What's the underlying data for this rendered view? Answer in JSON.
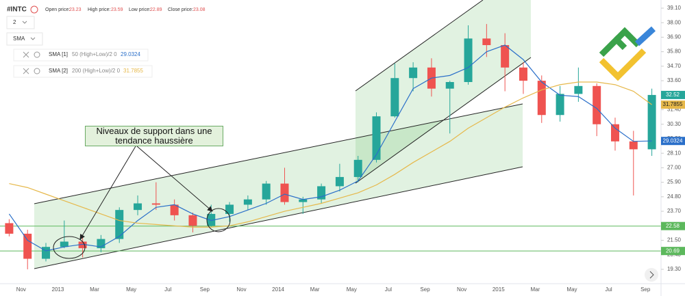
{
  "header": {
    "symbol": "#INTC",
    "open_label": "Open price:",
    "open": 23.23,
    "high_label": "High price:",
    "high": 23.59,
    "low_label": "Low price:",
    "low": 22.89,
    "close_label": "Close price:",
    "close": 23.08,
    "interval": "2",
    "indicator": "SMA"
  },
  "chart_data": {
    "type": "candlestick",
    "categories": [
      null,
      "Nov",
      null,
      "2013",
      null,
      "Mar",
      null,
      "May",
      null,
      "Jul",
      null,
      "Sep",
      null,
      "Nov",
      null,
      "2014",
      null,
      "Mar",
      null,
      "May",
      null,
      "Jul",
      null,
      "Sep",
      null,
      "Nov",
      null,
      "2015",
      null,
      "Mar",
      null,
      "May",
      null,
      "Jul",
      null,
      "Sep"
    ],
    "open": [
      22.8,
      22.0,
      20.1,
      21.0,
      21.4,
      20.9,
      21.6,
      23.8,
      24.3,
      24.2,
      23.4,
      22.6,
      23.5,
      24.2,
      24.6,
      25.8,
      24.4,
      24.6,
      25.6,
      26.3,
      27.6,
      30.9,
      33.8,
      34.6,
      33.0,
      33.5,
      36.8,
      36.3,
      34.6,
      33.6,
      31.0,
      32.6,
      33.2,
      30.3,
      29.0,
      28.4
    ],
    "high": [
      23.1,
      22.3,
      21.3,
      23.0,
      21.8,
      21.9,
      24.0,
      24.9,
      25.9,
      24.6,
      23.6,
      24.2,
      24.4,
      24.9,
      26.0,
      27.0,
      24.8,
      25.8,
      27.3,
      27.9,
      31.2,
      34.9,
      35.0,
      35.3,
      33.6,
      37.8,
      37.9,
      37.2,
      35.0,
      34.0,
      33.2,
      34.6,
      33.4,
      30.8,
      29.8,
      33.0
    ],
    "low": [
      21.8,
      19.3,
      19.9,
      20.9,
      20.2,
      20.6,
      21.3,
      23.4,
      23.8,
      23.0,
      22.1,
      22.5,
      22.9,
      23.8,
      24.2,
      24.2,
      23.5,
      24.3,
      25.2,
      25.9,
      27.4,
      30.8,
      32.8,
      32.4,
      29.6,
      33.3,
      35.4,
      32.8,
      32.6,
      30.4,
      30.5,
      32.0,
      29.4,
      28.3,
      24.9,
      27.9
    ],
    "close": [
      22.0,
      20.1,
      21.0,
      21.4,
      20.9,
      21.6,
      23.8,
      24.3,
      24.2,
      23.4,
      22.6,
      23.5,
      24.2,
      24.6,
      25.8,
      24.4,
      24.6,
      25.6,
      26.3,
      27.6,
      30.9,
      33.8,
      34.6,
      33.0,
      33.5,
      36.8,
      36.3,
      34.6,
      33.6,
      31.0,
      32.6,
      33.2,
      30.3,
      29.0,
      28.4,
      32.52
    ],
    "up_color": "#26a69a",
    "down_color": "#ef5350",
    "series": [
      {
        "name": "SMA [1]",
        "params": "50 (High+Low)/2 0",
        "color": "#2a6fc9",
        "values": [
          23.5,
          21.5,
          20.7,
          21.0,
          21.2,
          21.0,
          21.8,
          23.0,
          24.0,
          24.2,
          23.5,
          23.0,
          23.3,
          23.8,
          24.3,
          25.0,
          24.6,
          24.8,
          25.3,
          26.0,
          28.0,
          30.5,
          33.0,
          33.8,
          34.0,
          34.6,
          35.8,
          36.3,
          35.2,
          33.5,
          32.5,
          32.4,
          31.5,
          30.0,
          29.0,
          29.0324
        ]
      },
      {
        "name": "SMA [2]",
        "params": "200 (High+Low)/2 0",
        "color": "#e6b84a",
        "values": [
          25.8,
          25.5,
          25.0,
          24.5,
          24.0,
          23.5,
          23.0,
          22.8,
          22.7,
          22.6,
          22.5,
          22.5,
          22.6,
          22.9,
          23.3,
          23.7,
          24.0,
          24.3,
          24.7,
          25.1,
          25.7,
          26.5,
          27.4,
          28.2,
          29.0,
          30.0,
          30.8,
          31.6,
          32.3,
          32.9,
          33.3,
          33.5,
          33.5,
          33.3,
          32.8,
          31.7855
        ]
      }
    ],
    "levels": [
      {
        "value": 22.58,
        "color": "#5cb85c"
      },
      {
        "value": 20.69,
        "color": "#5cb85c"
      }
    ],
    "annotation": "Niveaux de support dans une tendance haussière",
    "ylim": [
      18.21,
      39.72
    ],
    "yticks": [
      {
        "value": 39.1,
        "label": "39.10"
      },
      {
        "value": 38,
        "label": "38.00"
      },
      {
        "value": 36.9,
        "label": "36.90"
      },
      {
        "value": 35.8,
        "label": "35.80"
      },
      {
        "value": 34.7,
        "label": "34.70"
      },
      {
        "value": 33.6,
        "label": "33.60"
      },
      {
        "value": 32.5,
        "label": "32.50"
      },
      {
        "value": 31.4,
        "label": "31.40"
      },
      {
        "value": 30.3,
        "label": "30.30"
      },
      {
        "value": 29.2,
        "label": "29.20"
      },
      {
        "value": 28.1,
        "label": "28.10"
      },
      {
        "value": 27,
        "label": "27.00"
      },
      {
        "value": 25.9,
        "label": "25.90"
      },
      {
        "value": 24.8,
        "label": "24.80"
      },
      {
        "value": 23.7,
        "label": "23.70"
      },
      {
        "value": 22.6,
        "label": "22.60"
      },
      {
        "value": 21.5,
        "label": "21.50"
      },
      {
        "value": 20.4,
        "label": "20.40"
      },
      {
        "value": 19.3,
        "label": "19.30"
      }
    ]
  }
}
